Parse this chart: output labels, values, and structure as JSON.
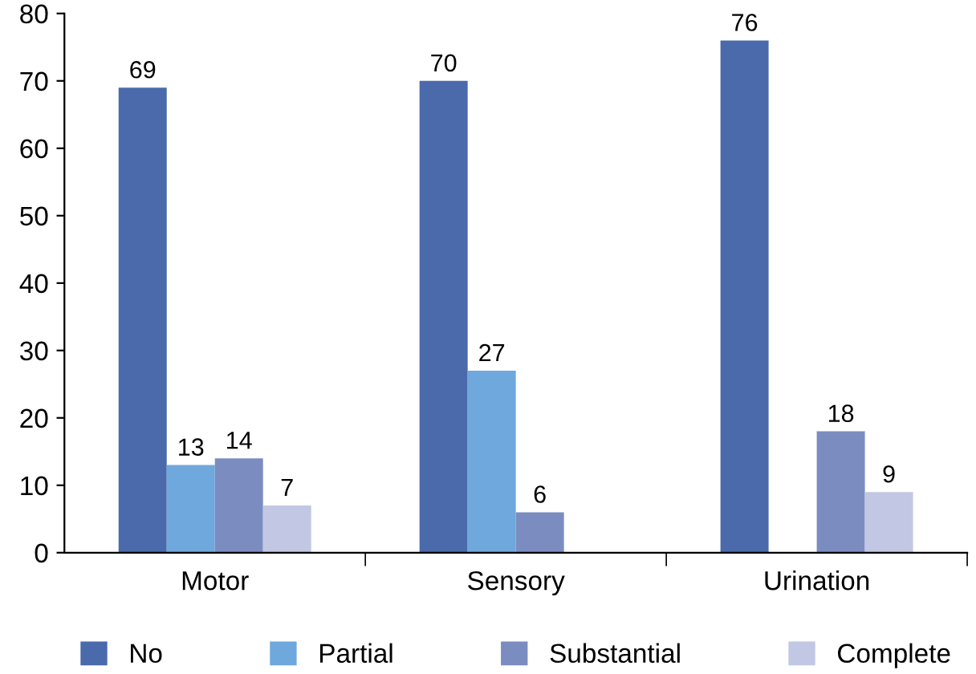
{
  "chart_data": {
    "type": "bar",
    "categories": [
      "Motor",
      "Sensory",
      "Urination"
    ],
    "series": [
      {
        "name": "No",
        "color": "#4a6aab",
        "values": [
          69,
          70,
          76
        ]
      },
      {
        "name": "Partial",
        "color": "#6fa8dc",
        "values": [
          13,
          27,
          null
        ]
      },
      {
        "name": "Substantial",
        "color": "#7b8cc0",
        "values": [
          14,
          6,
          18
        ]
      },
      {
        "name": "Complete",
        "color": "#c2c7e3",
        "values": [
          7,
          null,
          9
        ]
      }
    ],
    "ylim": [
      0,
      80
    ],
    "yticks": [
      0,
      10,
      20,
      30,
      40,
      50,
      60,
      70,
      80
    ],
    "data_labels": true,
    "legend": "bottom",
    "grid": false
  }
}
